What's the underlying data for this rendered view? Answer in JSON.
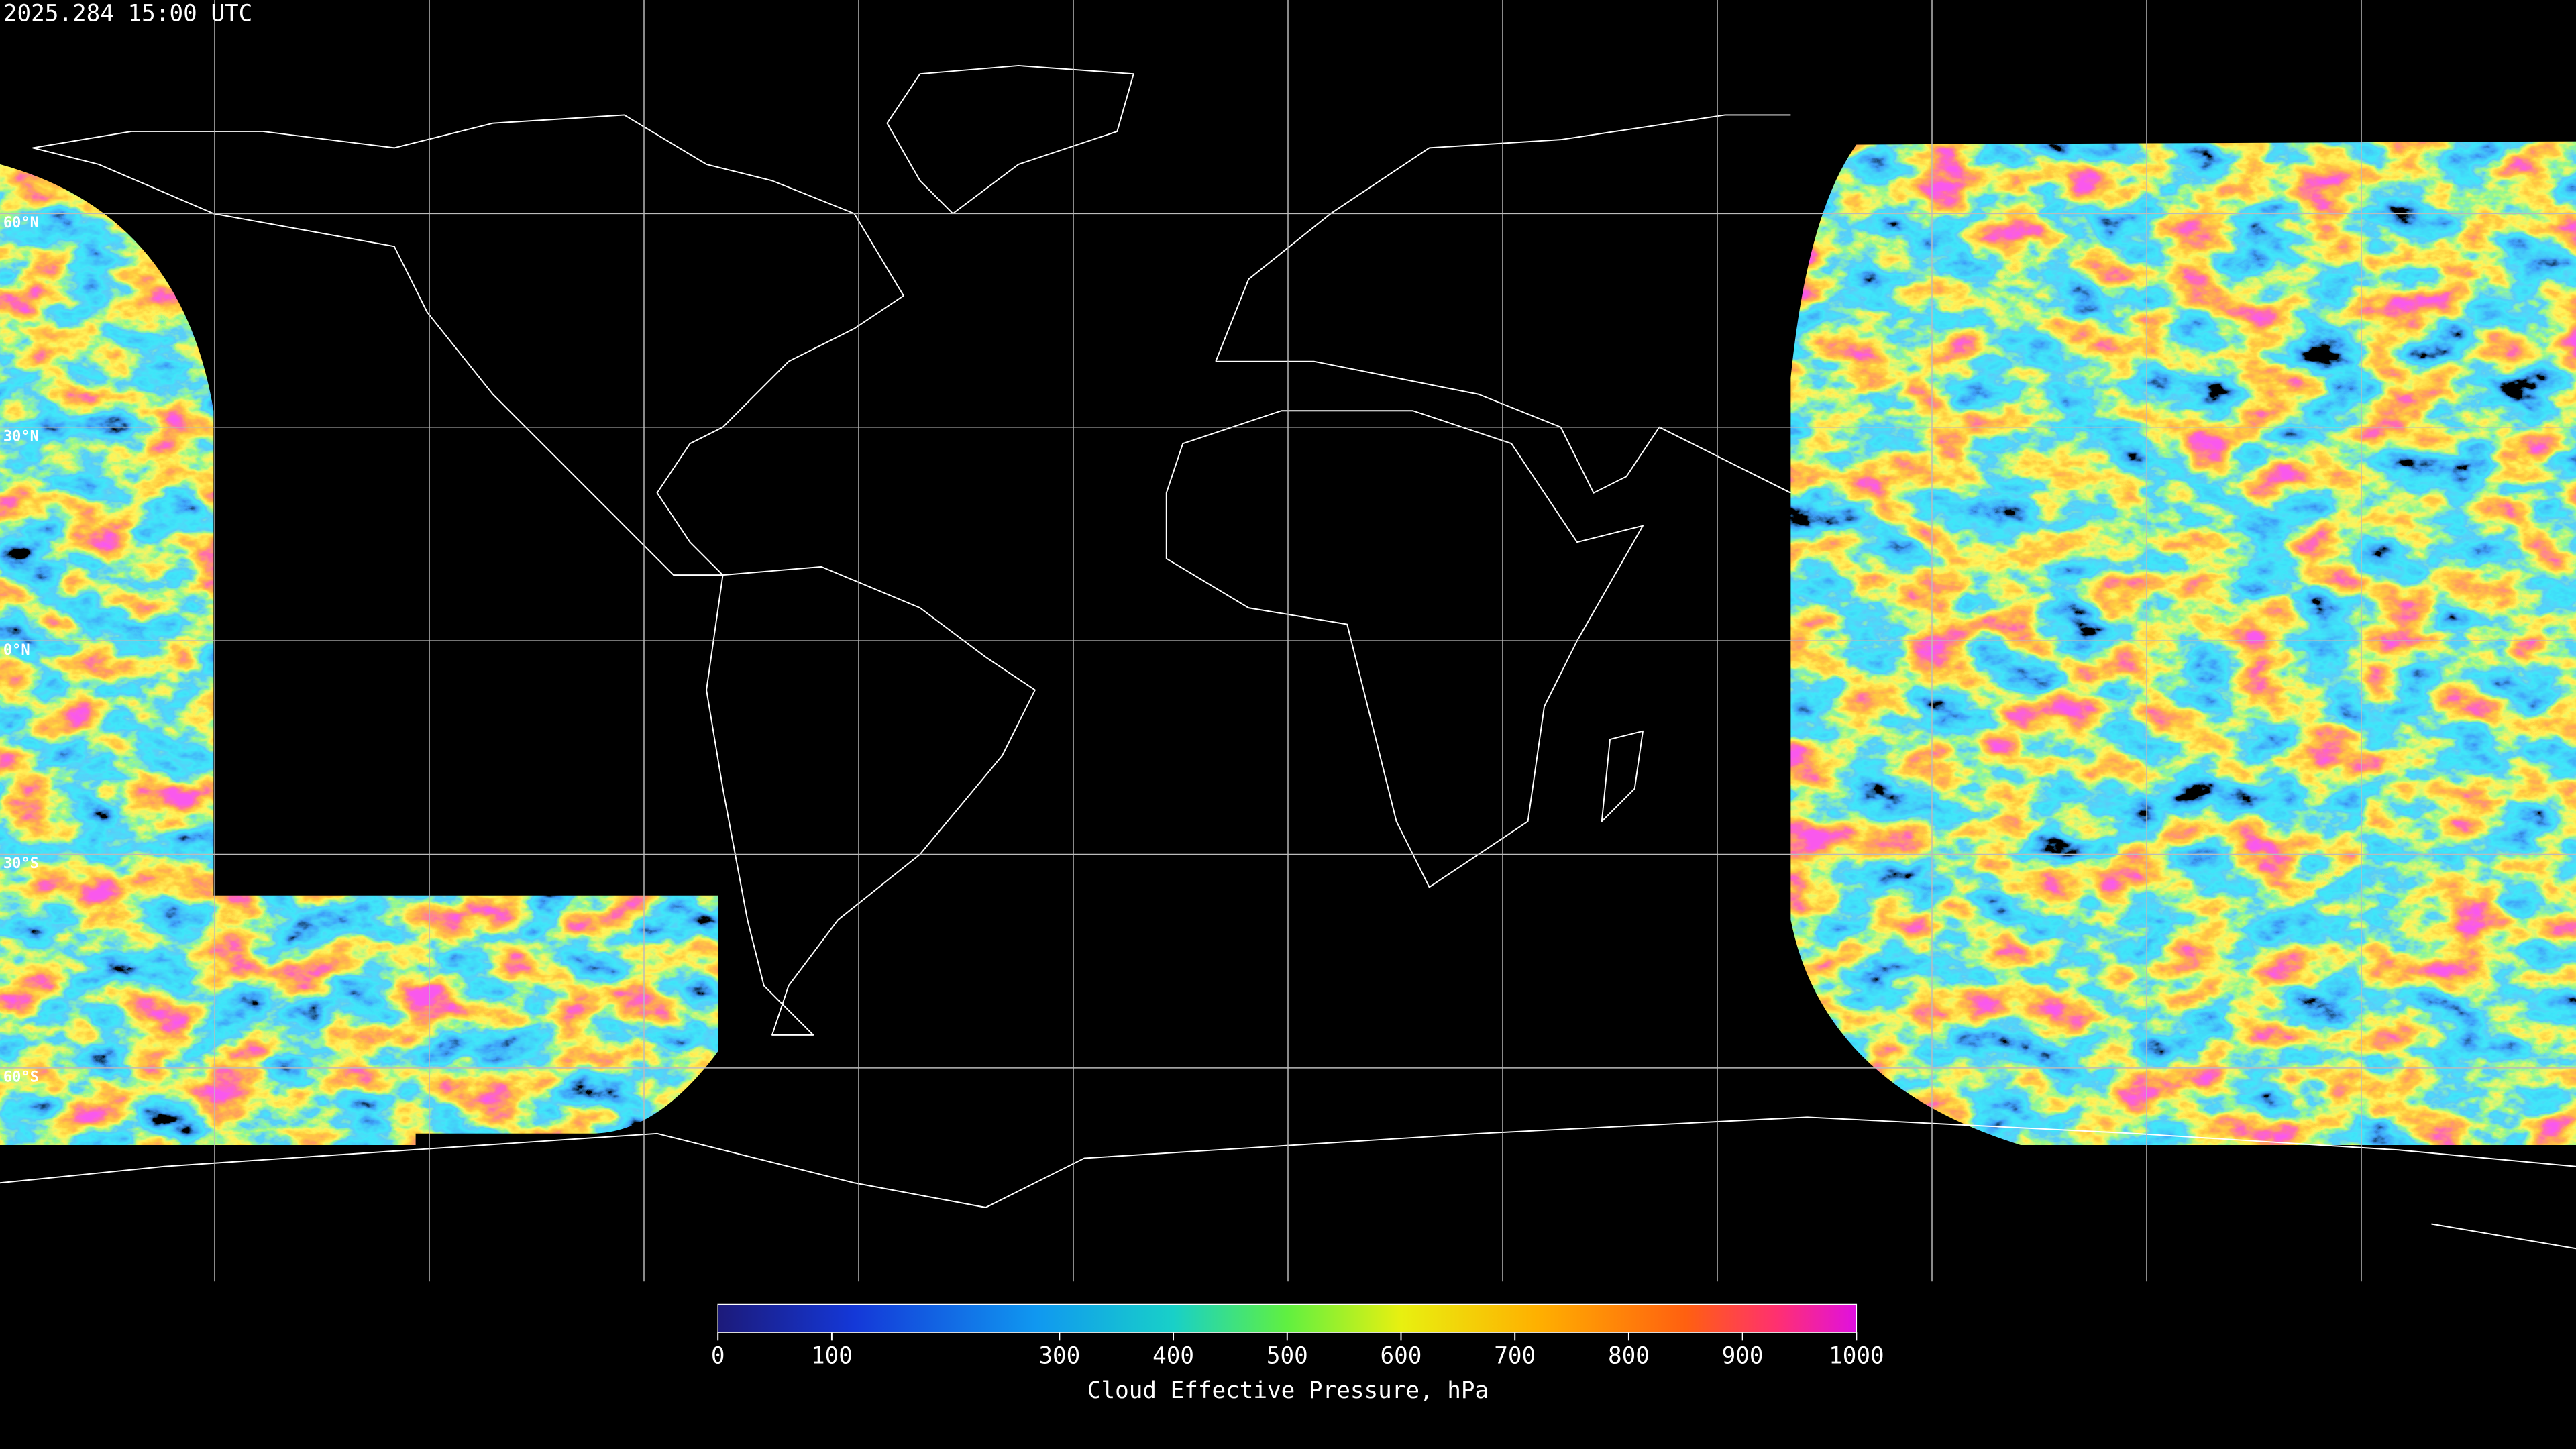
{
  "timestamp": "2025.284 15:00 UTC",
  "map": {
    "xlim": [
      -180,
      180
    ],
    "ylim": [
      -90,
      90
    ],
    "lon_grid": [
      -150,
      -120,
      -90,
      -60,
      -30,
      0,
      30,
      60,
      90,
      120,
      150
    ],
    "lat_grid": [
      {
        "value": 60,
        "label": "60°N"
      },
      {
        "value": 30,
        "label": "30°N"
      },
      {
        "value": 0,
        "label": "0°N"
      },
      {
        "value": -30,
        "label": "30°S"
      },
      {
        "value": -60,
        "label": "60°S"
      }
    ]
  },
  "colorbar": {
    "title": "Cloud Effective Pressure, hPa",
    "range": [
      0,
      1000
    ],
    "ticks": [
      0,
      100,
      300,
      400,
      500,
      600,
      700,
      800,
      900,
      1000
    ]
  }
}
